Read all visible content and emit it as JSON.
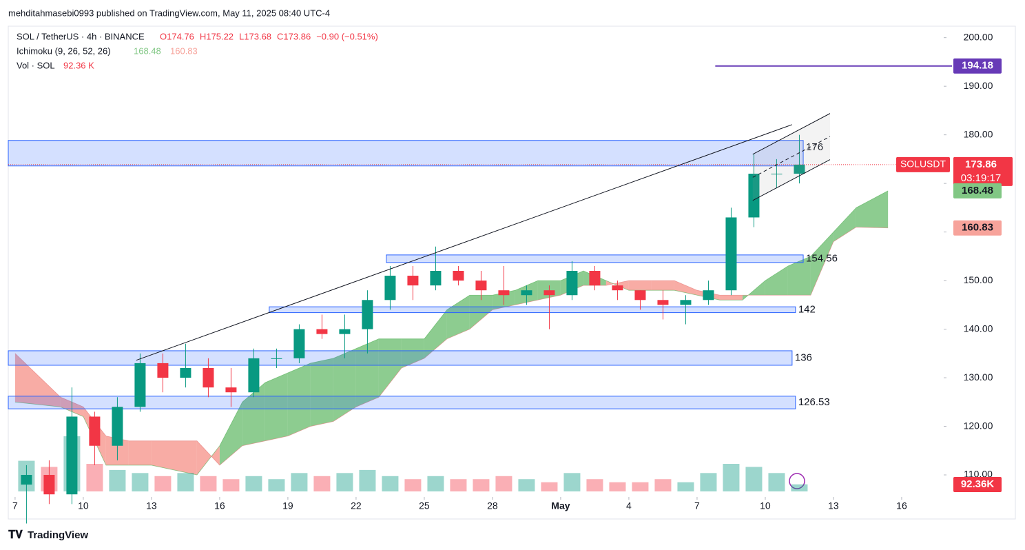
{
  "publisher": "mehditahmasebi0993 published on TradingView.com, May 11, 2025 08:40 UTC-4",
  "brand": "TradingView",
  "header": {
    "symbol": "SOL / TetherUS · 4h · BINANCE",
    "ohlc": [
      "O174.76",
      "H175.22",
      "L173.68",
      "C173.86",
      "−0.90 (−0.51%)"
    ],
    "ichimoku": "Ichimoku (9, 26, 52, 26)",
    "ichimoku_values": [
      "168.48",
      "160.83"
    ],
    "vol": "Vol · SOL",
    "vol_value": "92.36 K"
  },
  "chart_data": {
    "type": "candlestick",
    "xlim": [
      -0.3,
      40.85
    ],
    "ylim": [
      106.6,
      203.5
    ],
    "xticks": [
      {
        "value": 0,
        "label": "7"
      },
      {
        "value": 3,
        "label": "10"
      },
      {
        "value": 6,
        "label": "13"
      },
      {
        "value": 9,
        "label": "16"
      },
      {
        "value": 12,
        "label": "19"
      },
      {
        "value": 15,
        "label": "22"
      },
      {
        "value": 18,
        "label": "25"
      },
      {
        "value": 21,
        "label": "28"
      },
      {
        "value": 24,
        "label": "May"
      },
      {
        "value": 27,
        "label": "4"
      },
      {
        "value": 30,
        "label": "7"
      },
      {
        "value": 33,
        "label": "10"
      },
      {
        "value": 36,
        "label": "13"
      },
      {
        "value": 39,
        "label": "16"
      }
    ],
    "yticks": [
      {
        "value": 110,
        "label": "110.00"
      },
      {
        "value": 120,
        "label": "120.00"
      },
      {
        "value": 130,
        "label": "130.00"
      },
      {
        "value": 140,
        "label": "140.00"
      },
      {
        "value": 150,
        "label": "150.00"
      },
      {
        "value": 160,
        "label": "160.00"
      },
      {
        "value": 170,
        "label": "170.00"
      },
      {
        "value": 180,
        "label": "180.00"
      },
      {
        "value": 190,
        "label": "190.00"
      },
      {
        "value": 200,
        "label": "200.00"
      }
    ],
    "up_color": "#089981",
    "down_color": "#f23645",
    "x": [
      0.5,
      1.5,
      2.5,
      3.5,
      4.5,
      5.5,
      6.5,
      7.5,
      8.5,
      9.5,
      10.5,
      11.5,
      12.5,
      13.5,
      14.5,
      15.5,
      16.5,
      17.5,
      18.5,
      19.5,
      20.5,
      21.5,
      22.5,
      23.5,
      24.5,
      25.5,
      26.5,
      27.5,
      28.5,
      29.5,
      30.5,
      31.5,
      32.5,
      33.5,
      34.5
    ],
    "open": [
      108,
      110,
      106,
      122,
      116,
      124,
      133,
      130,
      132,
      128,
      127,
      134,
      134,
      140,
      139,
      140,
      146,
      151,
      149,
      152,
      150,
      148,
      147,
      148,
      147,
      152,
      149,
      148,
      146,
      145,
      146,
      148,
      163,
      172,
      172
    ],
    "high": [
      112,
      113,
      128,
      123,
      126,
      135,
      135,
      137,
      134,
      132,
      136,
      136,
      141,
      143,
      143,
      148,
      153,
      153,
      157,
      153,
      152,
      153,
      149,
      149,
      154,
      153,
      150,
      148,
      148,
      147,
      150,
      165,
      176,
      175,
      180
    ],
    "low": [
      100,
      104,
      104,
      112,
      113,
      123,
      127,
      128,
      126,
      124,
      126,
      132,
      133,
      138,
      134,
      135,
      144,
      146,
      148,
      149,
      146,
      145,
      145,
      140,
      146,
      148,
      146,
      144,
      142,
      141,
      145,
      147,
      161,
      169,
      170
    ],
    "close": [
      110,
      106,
      122,
      116,
      124,
      133,
      130,
      132,
      128,
      127,
      134,
      134,
      140,
      139,
      140,
      146,
      151,
      149,
      152,
      150,
      148,
      147,
      148,
      147,
      152,
      149,
      148,
      146,
      145,
      146,
      148,
      163,
      172,
      172,
      173.86
    ],
    "volume": [
      400,
      320,
      720,
      360,
      280,
      240,
      200,
      240,
      200,
      160,
      200,
      160,
      240,
      200,
      240,
      280,
      200,
      160,
      200,
      160,
      160,
      200,
      160,
      120,
      240,
      160,
      120,
      120,
      160,
      120,
      240,
      360,
      320,
      240,
      92.36
    ],
    "volume_label": "92.36K",
    "ichimoku": {
      "up_color": "#81c784",
      "down_color": "#f7a39b",
      "x": [
        0,
        2,
        3,
        4,
        5,
        6,
        8,
        9,
        10,
        11,
        12,
        13,
        14,
        15,
        16,
        17,
        18,
        19,
        20,
        21,
        22,
        23,
        24,
        25,
        26,
        27,
        28,
        29,
        30,
        31,
        32,
        33,
        34,
        35,
        36,
        37,
        38.4
      ],
      "span_a": [
        125,
        124,
        122,
        112,
        112,
        112,
        110,
        116,
        125,
        129,
        131,
        133,
        134,
        136,
        138,
        138,
        138,
        144,
        147,
        147,
        148,
        150,
        150,
        152,
        150,
        148,
        148,
        148,
        147,
        146,
        146,
        150,
        153,
        155,
        160,
        165,
        168.48
      ],
      "span_b": [
        135,
        126,
        124,
        118,
        117,
        117,
        117,
        112,
        116,
        117,
        118,
        120,
        121,
        124,
        126,
        132,
        134,
        138,
        140,
        144,
        145,
        146,
        147,
        149,
        149,
        150,
        150,
        150,
        148,
        147,
        147,
        147,
        147,
        147,
        158,
        161,
        160.83
      ]
    },
    "zones": [
      {
        "low": 173.6,
        "high": 178.85,
        "x0": -0.3,
        "x1": 34.67,
        "label": 176
      },
      {
        "low": 153.72,
        "high": 155.28,
        "x0": 16.33,
        "x1": 34.67,
        "label": 154.56
      },
      {
        "low": 143.4,
        "high": 144.6,
        "x0": 11.18,
        "x1": 34.33,
        "label": 142
      },
      {
        "low": 132.57,
        "high": 135.55,
        "x0": -0.3,
        "x1": 34.18,
        "label": 136
      },
      {
        "low": 123.6,
        "high": 126.2,
        "x0": -0.3,
        "x1": 34.33,
        "label": 126.53
      }
    ],
    "trend_line": {
      "x": [
        5.33,
        34.18
      ],
      "y": [
        133.6,
        182.1
      ]
    },
    "channel": {
      "x": [
        32.45,
        35.85
      ],
      "upper": [
        176.0,
        184.4
      ],
      "lower": [
        166.5,
        174.9
      ]
    },
    "hline": {
      "value": 194.18,
      "x0": 30.8,
      "color": "#673ab7"
    },
    "last_price": {
      "symbol": "SOLUSDT",
      "countdown": "03:19:17"
    }
  }
}
